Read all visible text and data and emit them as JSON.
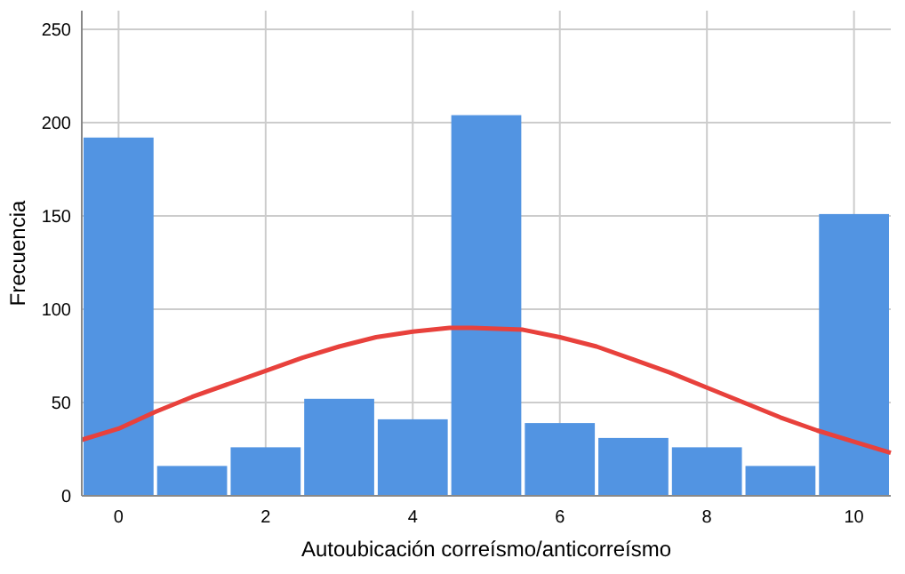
{
  "chart_data": {
    "type": "histogram",
    "xlabel": "Autoubicación correísmo/anticorreísmo",
    "ylabel": "Frecuencia",
    "bins": [
      -0.5,
      0.5,
      1.5,
      2.5,
      3.5,
      4.5,
      5.5,
      6.5,
      7.5,
      8.5,
      9.5,
      10.5
    ],
    "values": [
      192,
      16,
      26,
      52,
      41,
      204,
      39,
      31,
      26,
      16,
      151
    ],
    "color": "#5294e2",
    "series": [
      {
        "type": "line",
        "color": "#e8413c",
        "x": [
          -0.5,
          0,
          0.5,
          1,
          1.5,
          2,
          2.5,
          3,
          3.5,
          4,
          4.5,
          4.8,
          5.5,
          6,
          6.5,
          7,
          7.5,
          8,
          8.5,
          9,
          9.5,
          10,
          10.5
        ],
        "values": [
          30,
          36,
          45,
          53,
          60,
          67,
          74,
          80,
          85,
          88,
          90,
          90,
          89,
          85,
          80,
          73,
          66,
          58,
          50,
          42,
          35,
          29,
          23
        ]
      }
    ],
    "xlim": [
      -0.5,
      10.5
    ],
    "xticks": [
      0,
      2,
      4,
      6,
      8,
      10
    ],
    "ylim": [
      0,
      260
    ],
    "yticks": [
      0,
      50,
      100,
      150,
      200,
      250
    ],
    "grid": true,
    "line_style": "solid",
    "marker": "none"
  }
}
